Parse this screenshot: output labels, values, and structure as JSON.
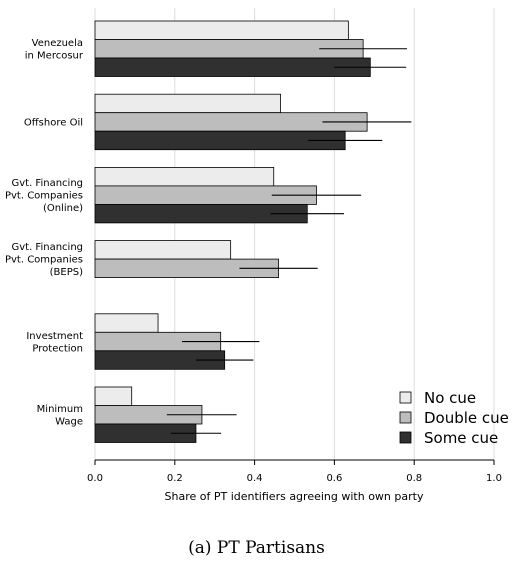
{
  "caption": "(a) PT Partisans",
  "chart_data": {
    "type": "bar",
    "orientation": "horizontal",
    "xlabel": "Share of PT identifiers agreeing with own party",
    "xlim": [
      0,
      1
    ],
    "xticks": [
      "0.0",
      "0.2",
      "0.4",
      "0.6",
      "0.8",
      "1.0"
    ],
    "grid": true,
    "legend_position": "bottom-right",
    "categories": [
      [
        "Venezuela",
        "in Mercosur"
      ],
      [
        "Offshore Oil"
      ],
      [
        "Gvt. Financing",
        "Pvt. Companies",
        "(Online)"
      ],
      [
        "Gvt. Financing",
        "Pvt. Companies",
        "(BEPS)"
      ],
      [
        "Investment",
        "Protection"
      ],
      [
        "Minimum",
        "Wage"
      ]
    ],
    "series": [
      {
        "name": "No cue",
        "color": "#ececec",
        "values": [
          0.635,
          0.465,
          0.448,
          0.34,
          0.158,
          0.092
        ],
        "ci_low": [
          null,
          null,
          null,
          null,
          null,
          null
        ],
        "ci_high": [
          null,
          null,
          null,
          null,
          null,
          null
        ]
      },
      {
        "name": "Double cue",
        "color": "#bdbdbd",
        "values": [
          0.672,
          0.682,
          0.555,
          0.46,
          0.315,
          0.268
        ],
        "ci_low": [
          0.562,
          0.57,
          0.443,
          0.362,
          0.218,
          0.18
        ],
        "ci_high": [
          0.782,
          0.793,
          0.667,
          0.558,
          0.412,
          0.355
        ]
      },
      {
        "name": "Some cue",
        "color": "#303030",
        "values": [
          0.69,
          0.627,
          0.532,
          null,
          0.325,
          0.253
        ],
        "ci_low": [
          0.6,
          0.534,
          0.44,
          null,
          0.253,
          0.19
        ],
        "ci_high": [
          0.78,
          0.72,
          0.624,
          null,
          0.397,
          0.316
        ]
      }
    ]
  }
}
